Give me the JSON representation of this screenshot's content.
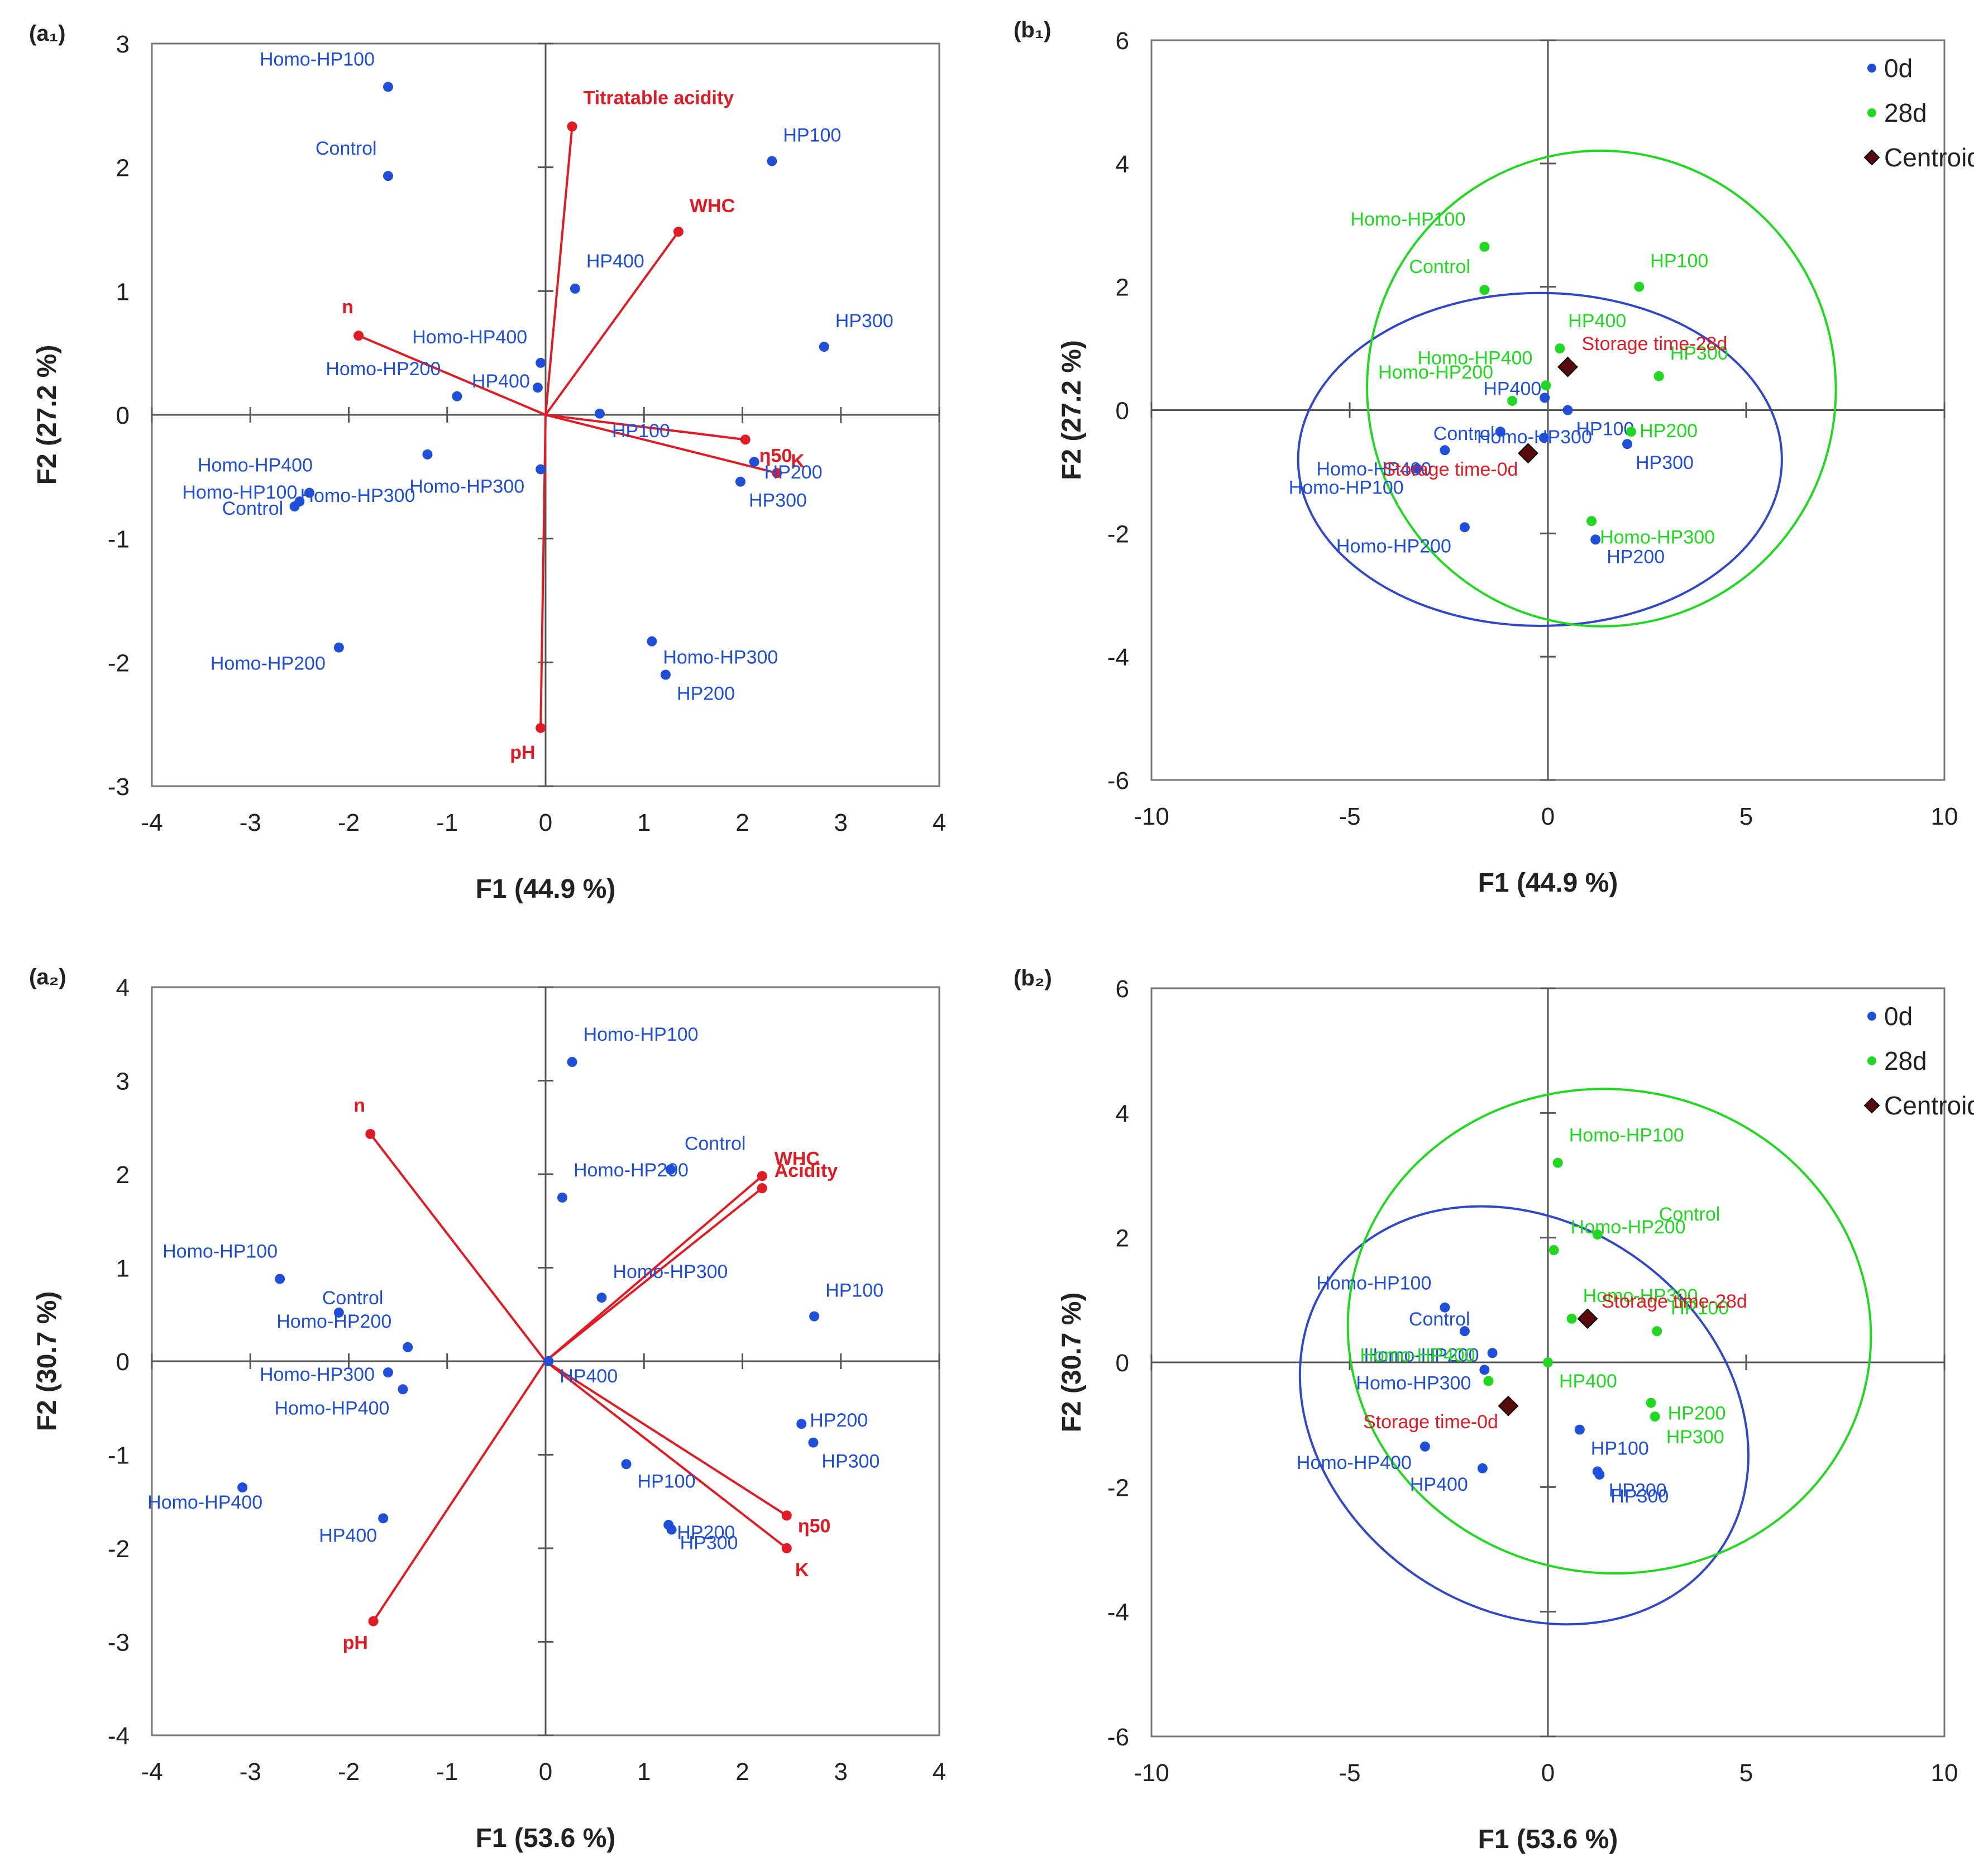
{
  "colors": {
    "obs": "#1f4fd8",
    "var": "#e01b24",
    "green": "#20d820",
    "ellipse0": "#3048c8",
    "centroid": "#5a0a0a",
    "axis": "#555555",
    "text": "#222222"
  },
  "chart_data": [
    {
      "id": "a1",
      "type": "biplot",
      "panel_label": "(a₁)",
      "xlabel": "F1 (44.9 %)",
      "ylabel": "F2 (27.2 %)",
      "xlim": [
        -4,
        4
      ],
      "ylim": [
        -3,
        3
      ],
      "xticks": [
        -4,
        -3,
        -2,
        -1,
        0,
        1,
        2,
        3,
        4
      ],
      "yticks": [
        -3,
        -2,
        -1,
        0,
        1,
        2,
        3
      ],
      "observations": [
        {
          "label": "Homo-HP100",
          "x": -1.6,
          "y": 2.65
        },
        {
          "label": "Control",
          "x": -1.6,
          "y": 1.93
        },
        {
          "label": "HP100",
          "x": 2.3,
          "y": 2.05
        },
        {
          "label": "HP400",
          "x": 0.3,
          "y": 1.02
        },
        {
          "label": "HP300",
          "x": 2.83,
          "y": 0.55
        },
        {
          "label": "Homo-HP400",
          "x": -0.05,
          "y": 0.42
        },
        {
          "label": "HP400",
          "x": -0.08,
          "y": 0.22
        },
        {
          "label": "Homo-HP200",
          "x": -0.9,
          "y": 0.15
        },
        {
          "label": "HP100",
          "x": 0.55,
          "y": 0.01
        },
        {
          "label": "Homo-HP300",
          "x": -1.2,
          "y": -0.32
        },
        {
          "label": "Homo-HP400",
          "x": -2.4,
          "y": -0.63
        },
        {
          "label": "Homo-HP100",
          "x": -2.5,
          "y": -0.7
        },
        {
          "label": "Control",
          "x": -2.55,
          "y": -0.74
        },
        {
          "label": "Homo-HP300",
          "x": -0.05,
          "y": -0.44
        },
        {
          "label": "HP200",
          "x": 2.12,
          "y": -0.38
        },
        {
          "label": "HP300",
          "x": 1.98,
          "y": -0.54
        },
        {
          "label": "Homo-HP200",
          "x": -2.1,
          "y": -1.88
        },
        {
          "label": "Homo-HP300",
          "x": 1.08,
          "y": -1.83
        },
        {
          "label": "HP200",
          "x": 1.22,
          "y": -2.1
        }
      ],
      "variables": [
        {
          "label": "Titratable  acidity",
          "x": 0.27,
          "y": 2.33
        },
        {
          "label": "WHC",
          "x": 1.35,
          "y": 1.48
        },
        {
          "label": "n",
          "x": -1.9,
          "y": 0.64
        },
        {
          "label": "η50",
          "x": 2.03,
          "y": -0.2
        },
        {
          "label": "K",
          "x": 2.35,
          "y": -0.47
        },
        {
          "label": "pH",
          "x": -0.05,
          "y": -2.53
        }
      ]
    },
    {
      "id": "b1",
      "type": "scatter",
      "panel_label": "(b₁)",
      "xlabel": "F1 (44.9 %)",
      "ylabel": "F2 (27.2 %)",
      "xlim": [
        -10,
        10
      ],
      "ylim": [
        -6,
        6
      ],
      "xticks": [
        -10,
        -5,
        0,
        5,
        10
      ],
      "yticks": [
        -6,
        -4,
        -2,
        0,
        2,
        4,
        6
      ],
      "legend": [
        {
          "label": "0d"
        },
        {
          "label": "28d"
        },
        {
          "label": "Centroid"
        }
      ],
      "series": [
        {
          "name": "0d",
          "points": [
            {
              "label": "HP100",
              "x": 0.5,
              "y": 0.0
            },
            {
              "label": "HP300",
              "x": 2.0,
              "y": -0.55
            },
            {
              "label": "HP200",
              "x": 1.2,
              "y": -2.1
            },
            {
              "label": "Homo-HP200",
              "x": -2.1,
              "y": -1.9
            },
            {
              "label": "Homo-HP400",
              "x": -2.6,
              "y": -0.65
            },
            {
              "label": "Homo-HP100",
              "x": -3.3,
              "y": -0.95
            },
            {
              "label": "Homo-HP300",
              "x": -0.1,
              "y": -0.45
            },
            {
              "label": "HP400",
              "x": -0.08,
              "y": 0.2
            },
            {
              "label": "Control",
              "x": -1.2,
              "y": -0.35
            }
          ]
        },
        {
          "name": "28d",
          "points": [
            {
              "label": "Homo-HP100",
              "x": -1.6,
              "y": 2.65
            },
            {
              "label": "Control",
              "x": -1.6,
              "y": 1.95
            },
            {
              "label": "HP100",
              "x": 2.3,
              "y": 2.0
            },
            {
              "label": "HP400",
              "x": 0.3,
              "y": 1.0
            },
            {
              "label": "HP300",
              "x": 2.8,
              "y": 0.55
            },
            {
              "label": "Homo-HP400",
              "x": -0.05,
              "y": 0.4
            },
            {
              "label": "Homo-HP200",
              "x": -0.9,
              "y": 0.15
            },
            {
              "label": "HP200",
              "x": 2.1,
              "y": -0.35
            },
            {
              "label": "Homo-HP300",
              "x": 1.1,
              "y": -1.8
            }
          ]
        }
      ],
      "centroids": [
        {
          "label": "Storage  time-28d",
          "x": 0.5,
          "y": 0.7
        },
        {
          "label": "Storage  time-0d",
          "x": -0.5,
          "y": -0.7
        }
      ],
      "ellipses": [
        {
          "series": "0d",
          "cx": -0.2,
          "cy": -0.8,
          "rx": 6.1,
          "ry": 2.7,
          "angle": 0
        },
        {
          "series": "28d",
          "cx": 1.35,
          "cy": 0.35,
          "rx": 6.0,
          "ry": 3.8,
          "angle": -98
        }
      ]
    },
    {
      "id": "a2",
      "type": "biplot",
      "panel_label": "(a₂)",
      "xlabel": "F1 (53.6 %)",
      "ylabel": "F2 (30.7 %)",
      "xlim": [
        -4,
        4
      ],
      "ylim": [
        -4,
        4
      ],
      "xticks": [
        -4,
        -3,
        -2,
        -1,
        0,
        1,
        2,
        3,
        4
      ],
      "yticks": [
        -4,
        -3,
        -2,
        -1,
        0,
        1,
        2,
        3,
        4
      ],
      "observations": [
        {
          "label": "Homo-HP100",
          "x": 0.27,
          "y": 3.2
        },
        {
          "label": "Control",
          "x": 1.27,
          "y": 2.05
        },
        {
          "label": "Homo-HP200",
          "x": 0.17,
          "y": 1.75
        },
        {
          "label": "Homo-HP300",
          "x": 0.57,
          "y": 0.68
        },
        {
          "label": "HP100",
          "x": 2.73,
          "y": 0.48
        },
        {
          "label": "Homo-HP100",
          "x": -2.7,
          "y": 0.88
        },
        {
          "label": "Control",
          "x": -2.1,
          "y": 0.52
        },
        {
          "label": "Homo-HP200",
          "x": -1.4,
          "y": 0.15
        },
        {
          "label": "Homo-HP300",
          "x": -1.6,
          "y": -0.12
        },
        {
          "label": "Homo-HP400",
          "x": -1.45,
          "y": -0.3
        },
        {
          "label": "HP400",
          "x": 0.03,
          "y": 0.0
        },
        {
          "label": "HP200",
          "x": 2.6,
          "y": -0.67
        },
        {
          "label": "HP300",
          "x": 2.72,
          "y": -0.87
        },
        {
          "label": "HP100",
          "x": 0.82,
          "y": -1.1
        },
        {
          "label": "HP200",
          "x": 1.25,
          "y": -1.75
        },
        {
          "label": "HP300",
          "x": 1.28,
          "y": -1.8
        },
        {
          "label": "Homo-HP400",
          "x": -3.08,
          "y": -1.35
        },
        {
          "label": "HP400",
          "x": -1.65,
          "y": -1.68
        }
      ],
      "variables": [
        {
          "label": "n",
          "x": -1.78,
          "y": 2.43
        },
        {
          "label": "WHC",
          "x": 2.2,
          "y": 1.98
        },
        {
          "label": "Acidity",
          "x": 2.2,
          "y": 1.85
        },
        {
          "label": "η50",
          "x": 2.45,
          "y": -1.65
        },
        {
          "label": "K",
          "x": 2.45,
          "y": -2.0
        },
        {
          "label": "pH",
          "x": -1.75,
          "y": -2.78
        }
      ]
    },
    {
      "id": "b2",
      "type": "scatter",
      "panel_label": "(b₂)",
      "xlabel": "F1 (53.6 %)",
      "ylabel": "F2 (30.7 %)",
      "xlim": [
        -10,
        10
      ],
      "ylim": [
        -6,
        6
      ],
      "xticks": [
        -10,
        -5,
        0,
        5,
        10
      ],
      "yticks": [
        -6,
        -4,
        -2,
        0,
        2,
        4,
        6
      ],
      "legend": [
        {
          "label": "0d"
        },
        {
          "label": "28d"
        },
        {
          "label": "Centroid"
        }
      ],
      "series": [
        {
          "name": "0d",
          "points": [
            {
              "label": "Homo-HP100",
              "x": -2.6,
              "y": 0.88
            },
            {
              "label": "Control",
              "x": -2.1,
              "y": 0.5
            },
            {
              "label": "Homo-HP200",
              "x": -1.4,
              "y": 0.15
            },
            {
              "label": "Homo-HP300",
              "x": -1.6,
              "y": -0.12
            },
            {
              "label": "Homo-HP400",
              "x": -3.1,
              "y": -1.35
            },
            {
              "label": "HP400",
              "x": -1.65,
              "y": -1.7
            },
            {
              "label": "HP100",
              "x": 0.8,
              "y": -1.08
            },
            {
              "label": "HP200",
              "x": 1.25,
              "y": -1.75
            },
            {
              "label": "HP300",
              "x": 1.3,
              "y": -1.8
            }
          ]
        },
        {
          "name": "28d",
          "points": [
            {
              "label": "Homo-HP100",
              "x": 0.25,
              "y": 3.2
            },
            {
              "label": "Control",
              "x": 1.25,
              "y": 2.05
            },
            {
              "label": "Homo-HP200",
              "x": 0.15,
              "y": 1.8
            },
            {
              "label": "Homo-HP300",
              "x": 0.6,
              "y": 0.7
            },
            {
              "label": "HP100",
              "x": 2.75,
              "y": 0.5
            },
            {
              "label": "HP400",
              "x": 0.0,
              "y": 0.0
            },
            {
              "label": "HP200",
              "x": 2.6,
              "y": -0.65
            },
            {
              "label": "HP300",
              "x": 2.7,
              "y": -0.87
            },
            {
              "label": "Homo-HP400",
              "x": -1.5,
              "y": -0.3
            }
          ]
        }
      ],
      "centroids": [
        {
          "label": "Storage  time-28d",
          "x": 1.0,
          "y": 0.7
        },
        {
          "label": "Storage  time-0d",
          "x": -1.0,
          "y": -0.7
        }
      ],
      "ellipses": [
        {
          "series": "0d",
          "cx": -0.6,
          "cy": -0.85,
          "rx": 6.0,
          "ry": 3.1,
          "angle": 35
        },
        {
          "series": "28d",
          "cx": 1.55,
          "cy": 0.5,
          "rx": 6.1,
          "ry": 4.2,
          "angle": -82
        }
      ]
    }
  ]
}
